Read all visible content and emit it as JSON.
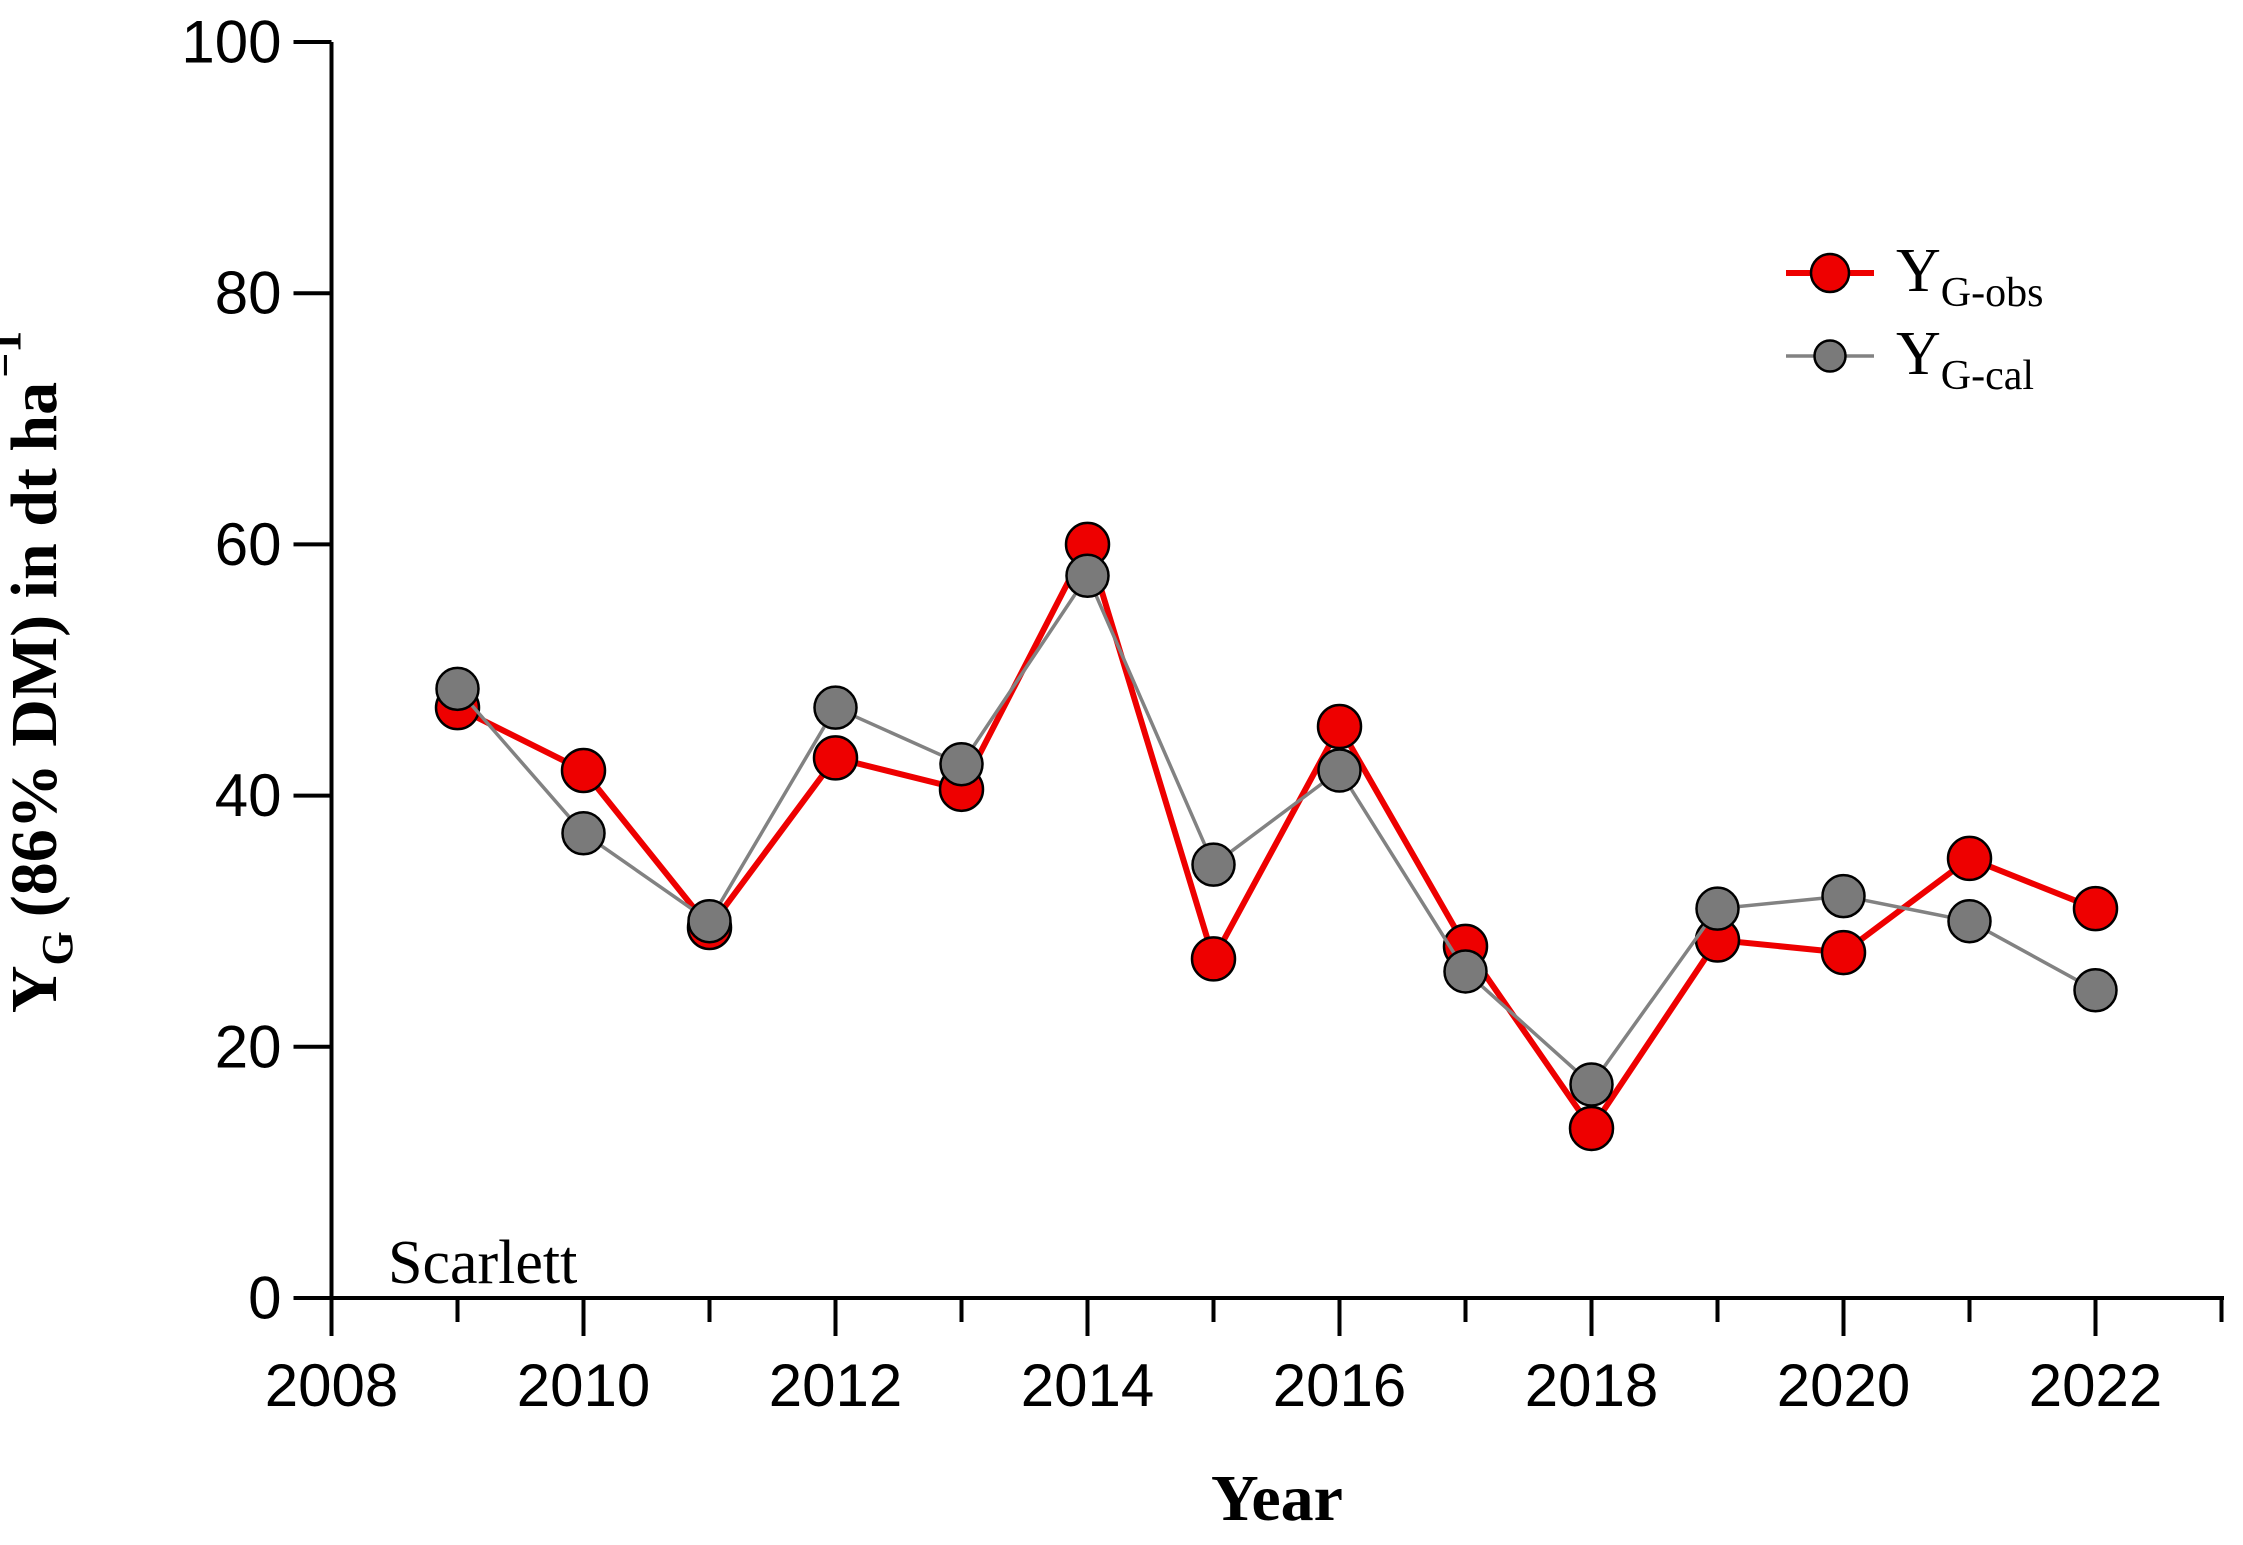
{
  "figure": {
    "annotation": "Scarlett",
    "xlabel": "Year",
    "ylabel_parts": {
      "main": "Y",
      "sub": "G",
      "unit": "(86% DM) in dt ha",
      "sup": "−1"
    }
  },
  "legend": {
    "position": "upper right",
    "entries": [
      {
        "id": "obs",
        "label_main": "Y",
        "label_sub": "G-obs"
      },
      {
        "id": "cal",
        "label_main": "Y",
        "label_sub": "G-cal"
      }
    ]
  },
  "chart_data": {
    "type": "line",
    "title": "",
    "xlabel": "Year",
    "ylabel": "Y_G (86% DM) in dt ha^-1",
    "annotation": "Scarlett",
    "grid": false,
    "legend_position": "upper right",
    "xlim": [
      2008,
      2023.1
    ],
    "ylim": [
      0,
      100
    ],
    "x_major_ticks": [
      2008,
      2010,
      2012,
      2014,
      2016,
      2018,
      2020,
      2022
    ],
    "x_minor_ticks": [
      2009,
      2011,
      2013,
      2015,
      2017,
      2019,
      2021,
      2023
    ],
    "y_ticks": [
      0,
      20,
      40,
      60,
      80,
      100
    ],
    "x": [
      2009,
      2010,
      2011,
      2012,
      2013,
      2014,
      2015,
      2016,
      2017,
      2018,
      2019,
      2020,
      2021,
      2022
    ],
    "series": [
      {
        "id": "obs",
        "name": "Y_G-obs",
        "color": "#ee0000",
        "line_color": "#ee0000",
        "line_width": 6,
        "marker_radius": 21.5,
        "legend_marker_radius": 19,
        "values": [
          47,
          42,
          29.5,
          43,
          40.5,
          60,
          27,
          45.5,
          28,
          13.5,
          28.5,
          27.5,
          35,
          31
        ]
      },
      {
        "id": "cal",
        "name": "Y_G-cal",
        "color": "#7a7a7a",
        "line_color": "#828282",
        "line_width": 3.5,
        "marker_radius": 21,
        "legend_marker_radius": 15.5,
        "values": [
          48.5,
          37,
          30,
          47,
          42.5,
          57.5,
          34.5,
          42,
          26,
          17,
          31,
          32,
          30,
          24.5
        ]
      }
    ]
  }
}
